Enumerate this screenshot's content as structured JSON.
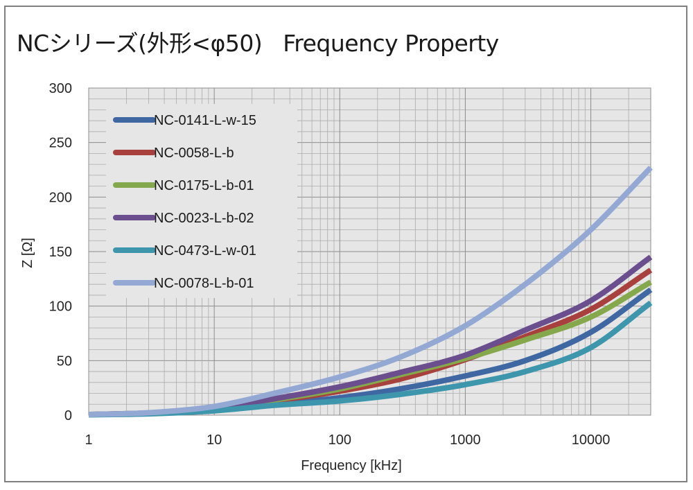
{
  "chart_data": {
    "type": "line",
    "title": "NCシリーズ(外形<φ50)   Frequency Property",
    "xlabel": "Frequency [kHz]",
    "ylabel": "Z [Ω]",
    "x_scale": "log",
    "xlim": [
      1,
      30000
    ],
    "ylim": [
      0,
      300
    ],
    "x_ticks": [
      "1",
      "10",
      "100",
      "1000",
      "10000"
    ],
    "y_ticks": [
      "0",
      "50",
      "100",
      "150",
      "200",
      "250",
      "300"
    ],
    "grid": true,
    "legend_position": "top-left",
    "x": [
      1,
      3,
      10,
      30,
      100,
      300,
      1000,
      3000,
      10000,
      30000
    ],
    "series": [
      {
        "name": "NC-0141-L-w-15",
        "color": "#3F68A3",
        "values": [
          0.5,
          1.5,
          4.5,
          10,
          16,
          24,
          36,
          50,
          76,
          115
        ]
      },
      {
        "name": "NC-0058-L-b",
        "color": "#A8403E",
        "values": [
          0.6,
          2,
          6,
          13,
          22,
          33,
          51,
          72,
          97,
          133
        ]
      },
      {
        "name": "NC-0175-L-b-01",
        "color": "#86A84C",
        "values": [
          0.6,
          2,
          6,
          14,
          24,
          37,
          52,
          69,
          90,
          122
        ]
      },
      {
        "name": "NC-0023-L-b-02",
        "color": "#6A4E8E",
        "values": [
          0.6,
          2,
          6.5,
          15,
          26,
          39,
          55,
          78,
          105,
          145
        ]
      },
      {
        "name": "NC-0473-L-w-01",
        "color": "#3D96AC",
        "values": [
          0.4,
          1.2,
          4,
          9,
          13,
          19,
          28,
          40,
          62,
          103
        ]
      },
      {
        "name": "NC-0078-L-b-01",
        "color": "#93A9D4",
        "values": [
          0.6,
          2.2,
          8,
          20,
          35,
          53,
          82,
          120,
          170,
          227
        ]
      }
    ]
  }
}
